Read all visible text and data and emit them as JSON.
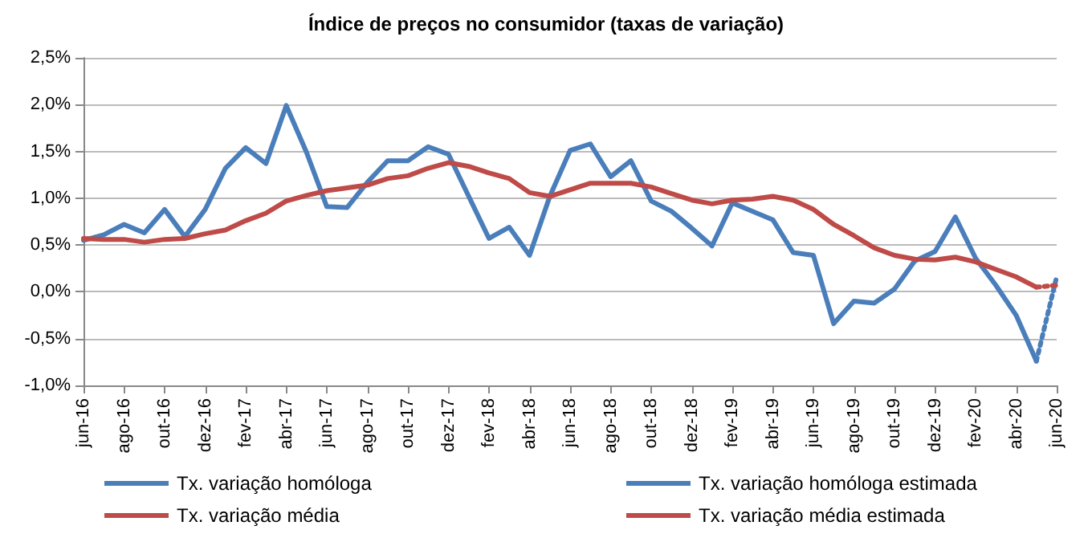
{
  "chart_data": {
    "type": "line",
    "title": "Índice de preços no consumidor (taxas de variação)",
    "categories": [
      "jun-16",
      null,
      "ago-16",
      null,
      "out-16",
      null,
      "dez-16",
      null,
      "fev-17",
      null,
      "abr-17",
      null,
      "jun-17",
      null,
      "ago-17",
      null,
      "out-17",
      null,
      "dez-17",
      null,
      "fev-18",
      null,
      "abr-18",
      null,
      "jun-18",
      null,
      "ago-18",
      null,
      "out-18",
      null,
      "dez-18",
      null,
      "fev-19",
      null,
      "abr-19",
      null,
      "jun-19",
      null,
      "ago-19",
      null,
      "out-19",
      null,
      "dez-19",
      null,
      "fev-20",
      null,
      "abr-20",
      null,
      "jun-20"
    ],
    "series": [
      {
        "name": "Tx. variação homóloga",
        "color": "#4a7ebb",
        "line_style": "solid",
        "values": [
          0.55,
          0.61,
          0.72,
          0.63,
          0.88,
          0.59,
          0.88,
          1.32,
          1.54,
          1.37,
          1.99,
          1.49,
          0.91,
          0.9,
          1.17,
          1.4,
          1.4,
          1.55,
          1.47,
          1.02,
          0.57,
          0.69,
          0.39,
          1.02,
          1.51,
          1.58,
          1.23,
          1.4,
          0.97,
          0.86,
          0.68,
          0.49,
          0.95,
          0.86,
          0.77,
          0.42,
          0.39,
          -0.34,
          -0.1,
          -0.12,
          0.03,
          0.33,
          0.43,
          0.8,
          0.36,
          0.07,
          -0.25,
          -0.74,
          null
        ]
      },
      {
        "name": "Tx. variação média",
        "color": "#be4b48",
        "line_style": "solid",
        "values": [
          0.57,
          0.56,
          0.56,
          0.53,
          0.56,
          0.57,
          0.62,
          0.66,
          0.76,
          0.84,
          0.97,
          1.03,
          1.08,
          1.11,
          1.14,
          1.21,
          1.24,
          1.32,
          1.38,
          1.34,
          1.27,
          1.21,
          1.06,
          1.02,
          1.09,
          1.16,
          1.16,
          1.16,
          1.12,
          1.05,
          0.98,
          0.94,
          0.98,
          0.99,
          1.02,
          0.98,
          0.88,
          0.72,
          0.6,
          0.47,
          0.39,
          0.35,
          0.34,
          0.37,
          0.32,
          0.24,
          0.16,
          0.05,
          null
        ]
      },
      {
        "name": "Tx. variação homóloga estimada",
        "color": "#4a7ebb",
        "line_style": "dotted",
        "values": [
          null,
          null,
          null,
          null,
          null,
          null,
          null,
          null,
          null,
          null,
          null,
          null,
          null,
          null,
          null,
          null,
          null,
          null,
          null,
          null,
          null,
          null,
          null,
          null,
          null,
          null,
          null,
          null,
          null,
          null,
          null,
          null,
          null,
          null,
          null,
          null,
          null,
          null,
          null,
          null,
          null,
          null,
          null,
          null,
          null,
          null,
          null,
          -0.74,
          0.16
        ]
      },
      {
        "name": "Tx. variação média estimada",
        "color": "#be4b48",
        "line_style": "dotted",
        "values": [
          null,
          null,
          null,
          null,
          null,
          null,
          null,
          null,
          null,
          null,
          null,
          null,
          null,
          null,
          null,
          null,
          null,
          null,
          null,
          null,
          null,
          null,
          null,
          null,
          null,
          null,
          null,
          null,
          null,
          null,
          null,
          null,
          null,
          null,
          null,
          null,
          null,
          null,
          null,
          null,
          null,
          null,
          null,
          null,
          null,
          null,
          null,
          0.05,
          0.07
        ]
      }
    ],
    "ylim": [
      -1.0,
      2.5
    ],
    "yticks": [
      {
        "value": -1.0,
        "label": "-1,0%"
      },
      {
        "value": -0.5,
        "label": "-0,5%"
      },
      {
        "value": 0,
        "label": "0,0%"
      },
      {
        "value": 0.5,
        "label": "0,5%"
      },
      {
        "value": 1.0,
        "label": "1,0%"
      },
      {
        "value": 1.5,
        "label": "1,5%"
      },
      {
        "value": 2.0,
        "label": "2,0%"
      },
      {
        "value": 2.5,
        "label": "2,5%"
      }
    ],
    "grid": "y",
    "legend": "bottom",
    "marker": "none"
  }
}
